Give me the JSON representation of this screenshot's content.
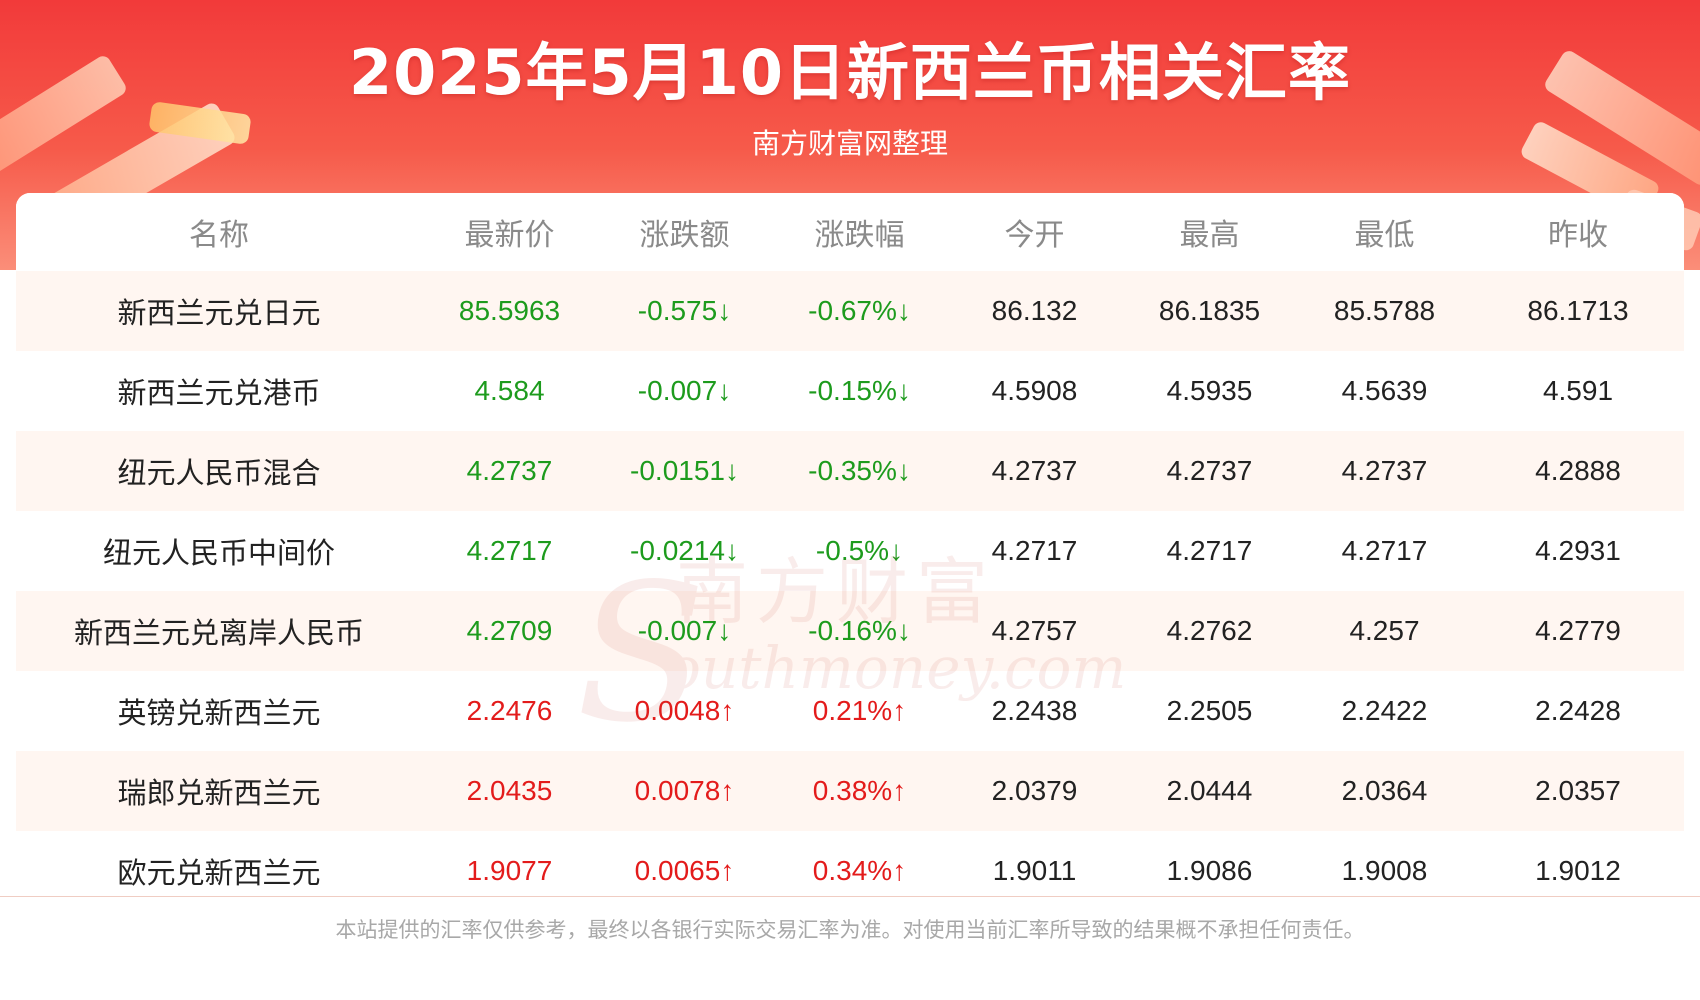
{
  "header": {
    "title": "2025年5月10日新西兰币相关汇率",
    "subtitle": "南方财富网整理"
  },
  "watermark": {
    "cn": "南方财富",
    "en": "outhmoney.com",
    "s": "S"
  },
  "table": {
    "columns": [
      "名称",
      "最新价",
      "涨跌额",
      "涨跌幅",
      "今开",
      "最高",
      "最低",
      "昨收"
    ],
    "rows": [
      {
        "name": "新西兰元兑日元",
        "latest": "85.5963",
        "change": "-0.575↓",
        "pct": "-0.67%↓",
        "open": "86.132",
        "high": "86.1835",
        "low": "85.5788",
        "prev": "86.1713",
        "dir": "down"
      },
      {
        "name": "新西兰元兑港币",
        "latest": "4.584",
        "change": "-0.007↓",
        "pct": "-0.15%↓",
        "open": "4.5908",
        "high": "4.5935",
        "low": "4.5639",
        "prev": "4.591",
        "dir": "down"
      },
      {
        "name": "纽元人民币混合",
        "latest": "4.2737",
        "change": "-0.0151↓",
        "pct": "-0.35%↓",
        "open": "4.2737",
        "high": "4.2737",
        "low": "4.2737",
        "prev": "4.2888",
        "dir": "down"
      },
      {
        "name": "纽元人民币中间价",
        "latest": "4.2717",
        "change": "-0.0214↓",
        "pct": "-0.5%↓",
        "open": "4.2717",
        "high": "4.2717",
        "low": "4.2717",
        "prev": "4.2931",
        "dir": "down"
      },
      {
        "name": "新西兰元兑离岸人民币",
        "latest": "4.2709",
        "change": "-0.007↓",
        "pct": "-0.16%↓",
        "open": "4.2757",
        "high": "4.2762",
        "low": "4.257",
        "prev": "4.2779",
        "dir": "down"
      },
      {
        "name": "英镑兑新西兰元",
        "latest": "2.2476",
        "change": "0.0048↑",
        "pct": "0.21%↑",
        "open": "2.2438",
        "high": "2.2505",
        "low": "2.2422",
        "prev": "2.2428",
        "dir": "up"
      },
      {
        "name": "瑞郎兑新西兰元",
        "latest": "2.0435",
        "change": "0.0078↑",
        "pct": "0.38%↑",
        "open": "2.0379",
        "high": "2.0444",
        "low": "2.0364",
        "prev": "2.0357",
        "dir": "up"
      },
      {
        "name": "欧元兑新西兰元",
        "latest": "1.9077",
        "change": "0.0065↑",
        "pct": "0.34%↑",
        "open": "1.9011",
        "high": "1.9086",
        "low": "1.9008",
        "prev": "1.9012",
        "dir": "up"
      }
    ]
  },
  "footer": {
    "disclaimer": "本站提供的汇率仅供参考，最终以各银行实际交易汇率为准。对使用当前汇率所导致的结果概不承担任何责任。"
  },
  "colors": {
    "banner_red": "#f23a3a",
    "down_green": "#1d9b1d",
    "up_red": "#e31b1b",
    "row_stripe": "#fff6f1"
  }
}
